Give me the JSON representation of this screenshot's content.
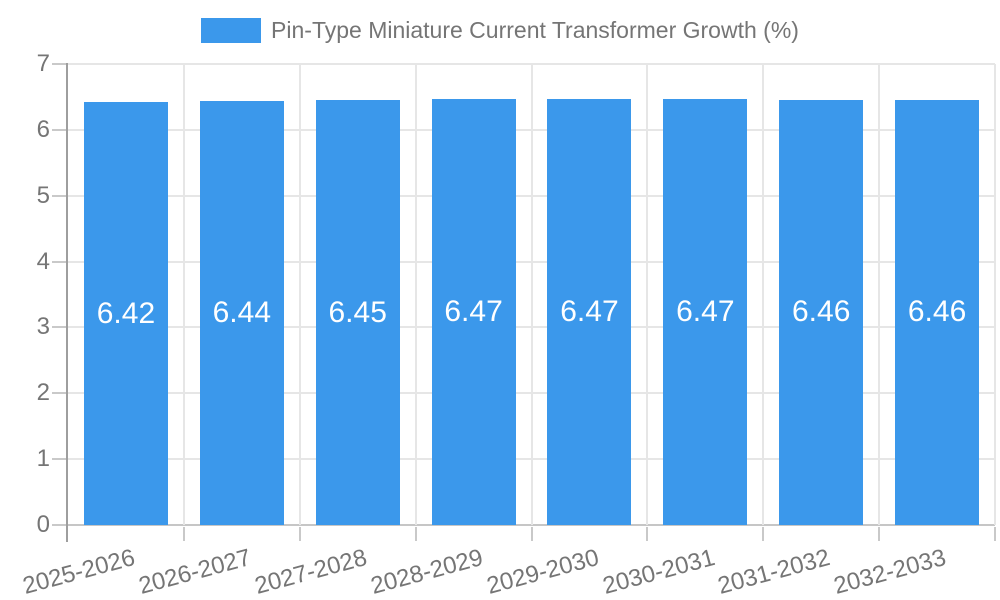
{
  "chart_data": {
    "type": "bar",
    "title": "",
    "legend_label": "Pin-Type Miniature Current Transformer Growth (%)",
    "legend_position": "top",
    "categories": [
      "2025-2026",
      "2026-2027",
      "2027-2028",
      "2028-2029",
      "2029-2030",
      "2030-2031",
      "2031-2032",
      "2032-2033"
    ],
    "values": [
      6.42,
      6.44,
      6.45,
      6.47,
      6.47,
      6.47,
      6.46,
      6.46
    ],
    "value_labels": [
      "6.42",
      "6.44",
      "6.45",
      "6.47",
      "6.47",
      "6.47",
      "6.46",
      "6.46"
    ],
    "xlabel": "",
    "ylabel": "",
    "ylim": [
      0,
      7
    ],
    "yticks": [
      0,
      1,
      2,
      3,
      4,
      5,
      6,
      7
    ],
    "grid": true,
    "colors": {
      "bar": "#3B98EB",
      "bar_label": "#FFFFFF",
      "axis_text": "#757575",
      "grid_line": "#E6E6E6",
      "baseline": "#C6C6C6",
      "tick": "#C9C9C9",
      "axis_line": "#9E9E9E",
      "background": "#FFFFFF"
    }
  }
}
